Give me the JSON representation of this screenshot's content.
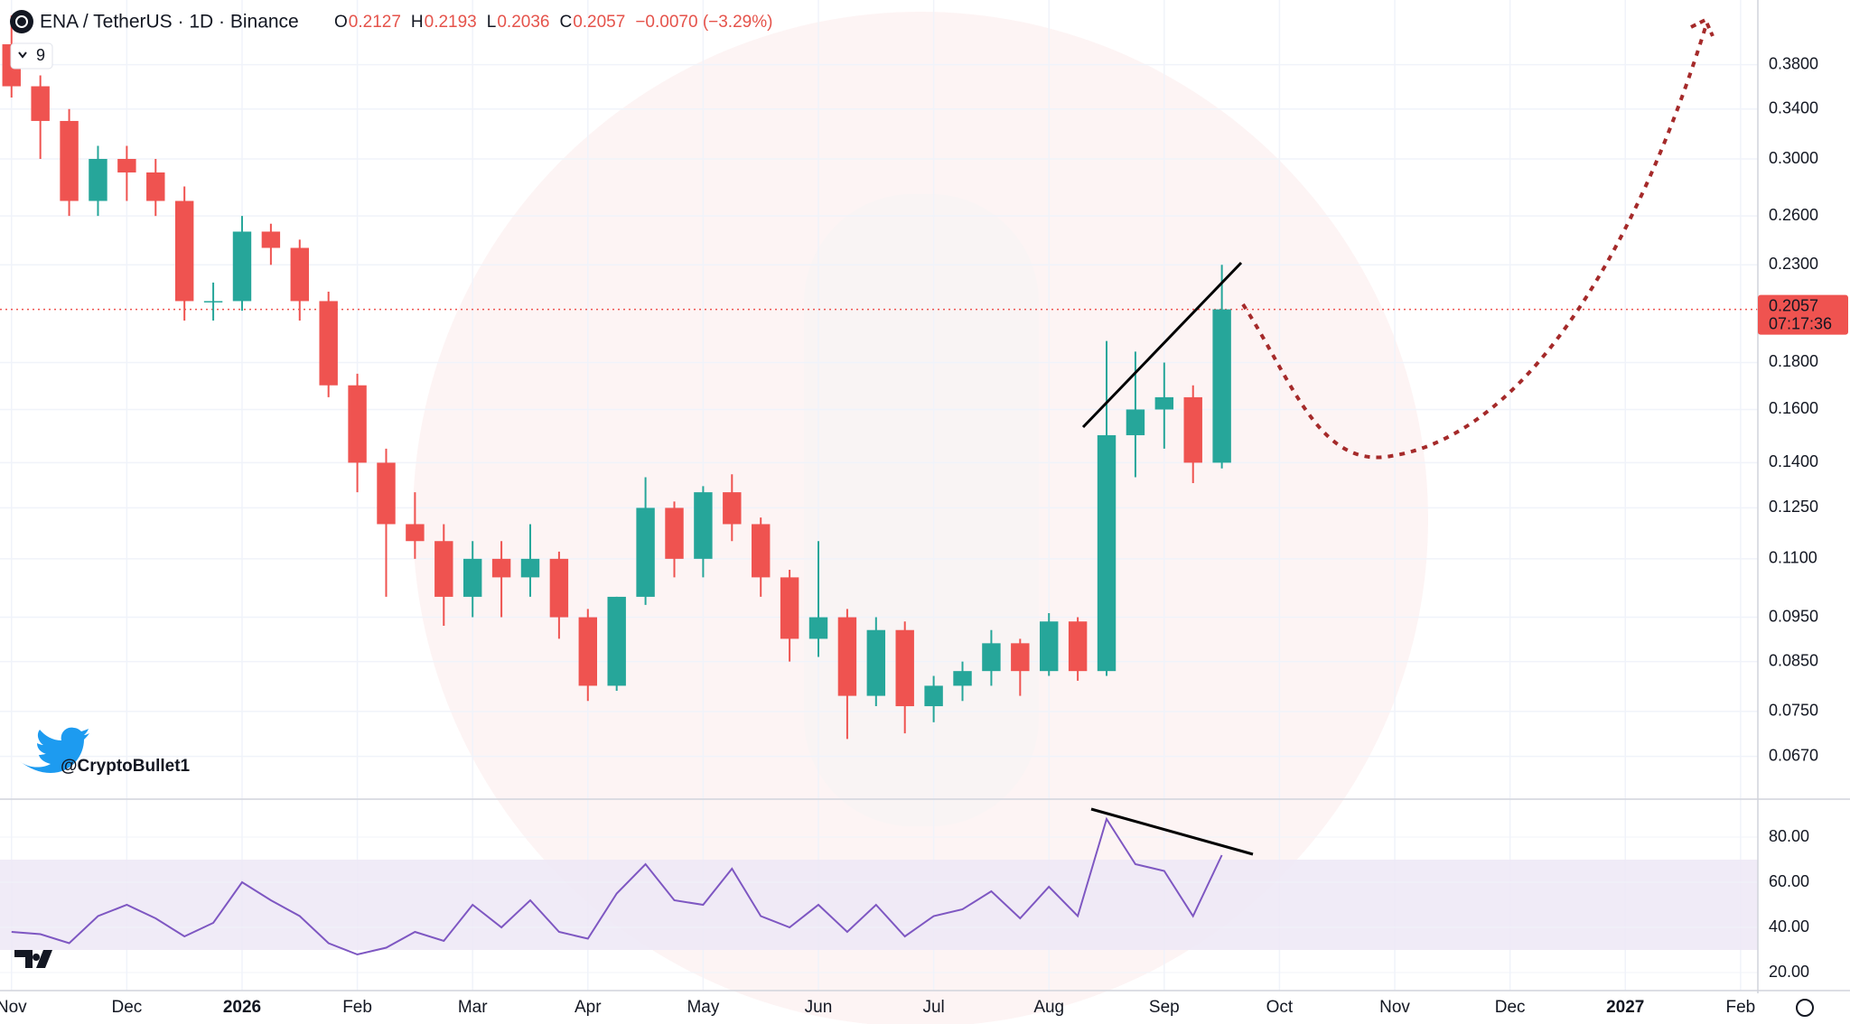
{
  "header": {
    "symbol": "ENA / TetherUS · 1D · Binance",
    "ohlc": [
      {
        "label": "O",
        "value": "0.2127"
      },
      {
        "label": "H",
        "value": "0.2193"
      },
      {
        "label": "L",
        "value": "0.2036"
      },
      {
        "label": "C",
        "value": "0.2057"
      }
    ],
    "change": "−0.0070 (−3.29%)",
    "indicator_count": "9",
    "watermark": "@CryptoBullet1",
    "countdown": "07:17:36"
  },
  "chart_data": [
    {
      "type": "candlestick",
      "log_scale": true,
      "grid": true,
      "up_color": "#26a69a",
      "down_color": "#ef5350",
      "last_price": 0.2057,
      "x": [
        0,
        0.25,
        0.5,
        0.75,
        1,
        1.25,
        1.5,
        1.75,
        2,
        2.25,
        2.5,
        2.75,
        3,
        3.25,
        3.5,
        3.75,
        4,
        4.25,
        4.5,
        4.75,
        5,
        5.25,
        5.5,
        5.75,
        6,
        6.25,
        6.5,
        6.75,
        7,
        7.25,
        7.5,
        7.75,
        8,
        8.25,
        8.5,
        8.75,
        9,
        9.25,
        9.5,
        9.75,
        10,
        10.25,
        10.5
      ],
      "open": [
        0.4,
        0.36,
        0.33,
        0.27,
        0.3,
        0.29,
        0.27,
        0.21,
        0.21,
        0.25,
        0.24,
        0.21,
        0.17,
        0.14,
        0.12,
        0.115,
        0.1,
        0.11,
        0.105,
        0.11,
        0.095,
        0.08,
        0.1,
        0.125,
        0.11,
        0.13,
        0.12,
        0.105,
        0.09,
        0.095,
        0.078,
        0.092,
        0.076,
        0.08,
        0.083,
        0.089,
        0.083,
        0.094,
        0.083,
        0.15,
        0.16,
        0.165,
        0.14
      ],
      "high": [
        0.43,
        0.37,
        0.34,
        0.31,
        0.31,
        0.3,
        0.28,
        0.22,
        0.26,
        0.255,
        0.245,
        0.215,
        0.175,
        0.145,
        0.13,
        0.12,
        0.115,
        0.115,
        0.12,
        0.112,
        0.097,
        0.1,
        0.135,
        0.127,
        0.132,
        0.136,
        0.122,
        0.107,
        0.115,
        0.097,
        0.095,
        0.094,
        0.082,
        0.085,
        0.092,
        0.09,
        0.096,
        0.095,
        0.19,
        0.185,
        0.18,
        0.17,
        0.23
      ],
      "low": [
        0.35,
        0.3,
        0.26,
        0.26,
        0.27,
        0.26,
        0.2,
        0.2,
        0.205,
        0.23,
        0.2,
        0.165,
        0.13,
        0.1,
        0.11,
        0.093,
        0.095,
        0.095,
        0.1,
        0.09,
        0.077,
        0.079,
        0.098,
        0.105,
        0.105,
        0.115,
        0.1,
        0.085,
        0.086,
        0.07,
        0.076,
        0.071,
        0.073,
        0.077,
        0.08,
        0.078,
        0.082,
        0.081,
        0.082,
        0.135,
        0.145,
        0.133,
        0.138
      ],
      "close": [
        0.36,
        0.33,
        0.27,
        0.3,
        0.29,
        0.27,
        0.21,
        0.21,
        0.25,
        0.24,
        0.21,
        0.17,
        0.14,
        0.12,
        0.115,
        0.1,
        0.11,
        0.105,
        0.11,
        0.095,
        0.08,
        0.1,
        0.125,
        0.11,
        0.13,
        0.12,
        0.105,
        0.09,
        0.095,
        0.078,
        0.092,
        0.076,
        0.08,
        0.083,
        0.089,
        0.083,
        0.094,
        0.083,
        0.15,
        0.16,
        0.165,
        0.14,
        0.2057
      ],
      "xlim": [
        -0.1,
        15.15
      ],
      "xticks": [
        {
          "value": 0,
          "label": "Nov"
        },
        {
          "value": 1,
          "label": "Dec"
        },
        {
          "value": 2,
          "label": "2026"
        },
        {
          "value": 3,
          "label": "Feb"
        },
        {
          "value": 4,
          "label": "Mar"
        },
        {
          "value": 5,
          "label": "Apr"
        },
        {
          "value": 6,
          "label": "May"
        },
        {
          "value": 7,
          "label": "Jun"
        },
        {
          "value": 8,
          "label": "Jul"
        },
        {
          "value": 9,
          "label": "Aug"
        },
        {
          "value": 10,
          "label": "Sep"
        },
        {
          "value": 11,
          "label": "Oct"
        },
        {
          "value": 12,
          "label": "Nov"
        },
        {
          "value": 13,
          "label": "Dec"
        },
        {
          "value": 14,
          "label": "2027"
        },
        {
          "value": 15,
          "label": "Feb"
        }
      ],
      "ylim": [
        0.0606,
        0.447
      ],
      "yticks": [
        {
          "value": 0.067,
          "label": "0.0670"
        },
        {
          "value": 0.075,
          "label": "0.0750"
        },
        {
          "value": 0.085,
          "label": "0.0850"
        },
        {
          "value": 0.095,
          "label": "0.0950"
        },
        {
          "value": 0.11,
          "label": "0.1100"
        },
        {
          "value": 0.125,
          "label": "0.1250"
        },
        {
          "value": 0.14,
          "label": "0.1400"
        },
        {
          "value": 0.16,
          "label": "0.1600"
        },
        {
          "value": 0.18,
          "label": "0.1800"
        },
        {
          "value": 0.23,
          "label": "0.2300"
        },
        {
          "value": 0.26,
          "label": "0.2600"
        },
        {
          "value": 0.3,
          "label": "0.3000"
        },
        {
          "value": 0.34,
          "label": "0.3400"
        },
        {
          "value": 0.38,
          "label": "0.3800"
        }
      ]
    },
    {
      "type": "line",
      "color": "#7e57c2",
      "band": [
        30,
        70
      ],
      "band_color": "#ede7f6",
      "x": [
        0,
        0.25,
        0.5,
        0.75,
        1,
        1.25,
        1.5,
        1.75,
        2,
        2.25,
        2.5,
        2.75,
        3,
        3.25,
        3.5,
        3.75,
        4,
        4.25,
        4.5,
        4.75,
        5,
        5.25,
        5.5,
        5.75,
        6,
        6.25,
        6.5,
        6.75,
        7,
        7.25,
        7.5,
        7.75,
        8,
        8.25,
        8.5,
        8.75,
        9,
        9.25,
        9.5,
        9.75,
        10,
        10.25,
        10.5
      ],
      "values": [
        38,
        37,
        33,
        45,
        50,
        44,
        36,
        42,
        60,
        52,
        45,
        33,
        28,
        31,
        38,
        34,
        50,
        40,
        52,
        38,
        35,
        55,
        68,
        52,
        50,
        66,
        45,
        40,
        50,
        38,
        50,
        36,
        45,
        48,
        56,
        44,
        58,
        45,
        88,
        68,
        65,
        45,
        72
      ],
      "xlim": [
        -0.1,
        15.15
      ],
      "ylim": [
        13.2,
        95.6
      ],
      "yticks": [
        {
          "value": 20,
          "label": "20.00"
        },
        {
          "value": 40,
          "label": "40.00"
        },
        {
          "value": 60,
          "label": "60.00"
        },
        {
          "value": 80,
          "label": "80.00"
        }
      ]
    }
  ]
}
